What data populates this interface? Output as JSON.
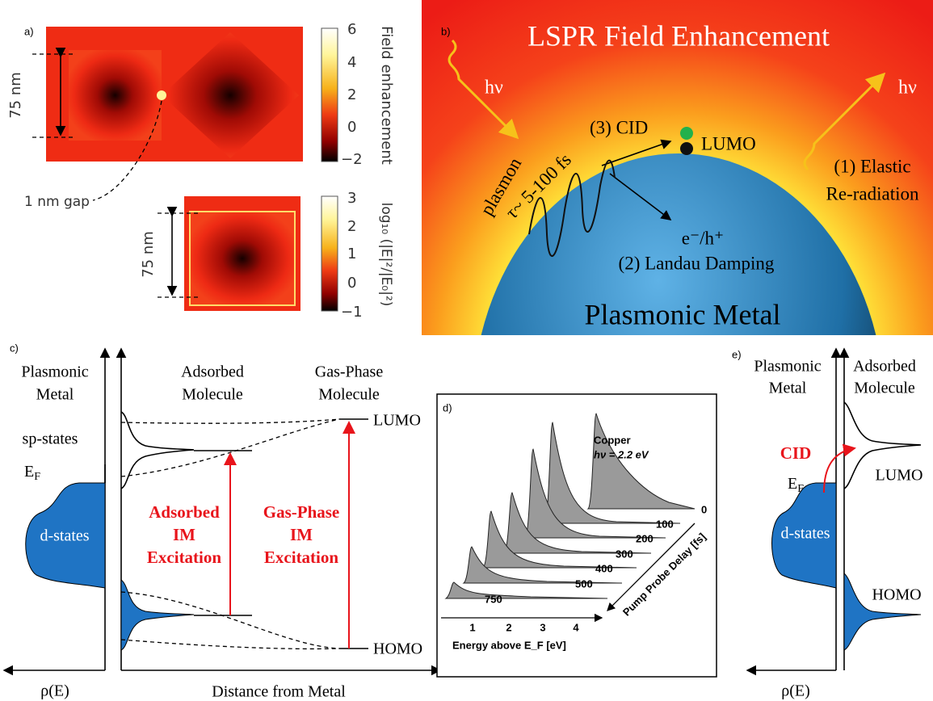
{
  "panel_a": {
    "label": "a)",
    "scale_top": "75 nm",
    "gap": "1 nm gap",
    "scale_bottom": "75 nm",
    "colorbar_top": {
      "title": "Field enhancement",
      "ticks": [
        "6",
        "4",
        "2",
        "0",
        "−2"
      ]
    },
    "colorbar_bottom": {
      "title": "log₁₀ (|E|²/|E₀|²)",
      "ticks": [
        "3",
        "2",
        "1",
        "0",
        "−1"
      ]
    }
  },
  "panel_b": {
    "label": "b)",
    "title": "LSPR Field Enhancement",
    "photon_in": "hν",
    "photon_out": "hν",
    "cid": "(3) CID",
    "lumo": "LUMO",
    "plasmon": "plasmon",
    "lifetime": "τ~ 5-100 fs",
    "elastic": "(1) Elastic",
    "reradiation": "Re-radiation",
    "carriers": "e⁻/h⁺",
    "landau": "(2) Landau Damping",
    "metal": "Plasmonic Metal"
  },
  "panel_c": {
    "label": "c)",
    "metal": [
      "Plasmonic",
      "Metal"
    ],
    "sp_states": "sp-states",
    "fermi": {
      "main": "E",
      "sub": "F"
    },
    "d_states": "d-states",
    "adsorbed": [
      "Adsorbed",
      "Molecule"
    ],
    "gas": [
      "Gas-Phase",
      "Molecule"
    ],
    "lumo": "LUMO",
    "homo": "HOMO",
    "adsorbed_excitation": [
      "Adsorbed",
      "IM",
      "Excitation"
    ],
    "gas_excitation": [
      "Gas-Phase",
      "IM",
      "Excitation"
    ],
    "x_left": "ρ(E)",
    "x_right": "Distance from Metal"
  },
  "panel_d": {
    "label": "d)",
    "material": "Copper",
    "photon": "hν = 2.2 eV",
    "delays": [
      "0",
      "100",
      "200",
      "300",
      "400",
      "500",
      "750"
    ],
    "delay_axis": "Pump Probe Delay [fs]",
    "energy_ticks": [
      "1",
      "2",
      "3",
      "4"
    ],
    "energy_axis": "Energy above E_F [eV]"
  },
  "panel_e": {
    "label": "e)",
    "metal": [
      "Plasmonic",
      "Metal"
    ],
    "adsorbed": [
      "Adsorbed",
      "Molecule"
    ],
    "cid": "CID",
    "fermi": {
      "main": "E",
      "sub": "F"
    },
    "d_states": "d-states",
    "lumo": "LUMO",
    "homo": "HOMO",
    "x_axis": "ρ(E)"
  }
}
